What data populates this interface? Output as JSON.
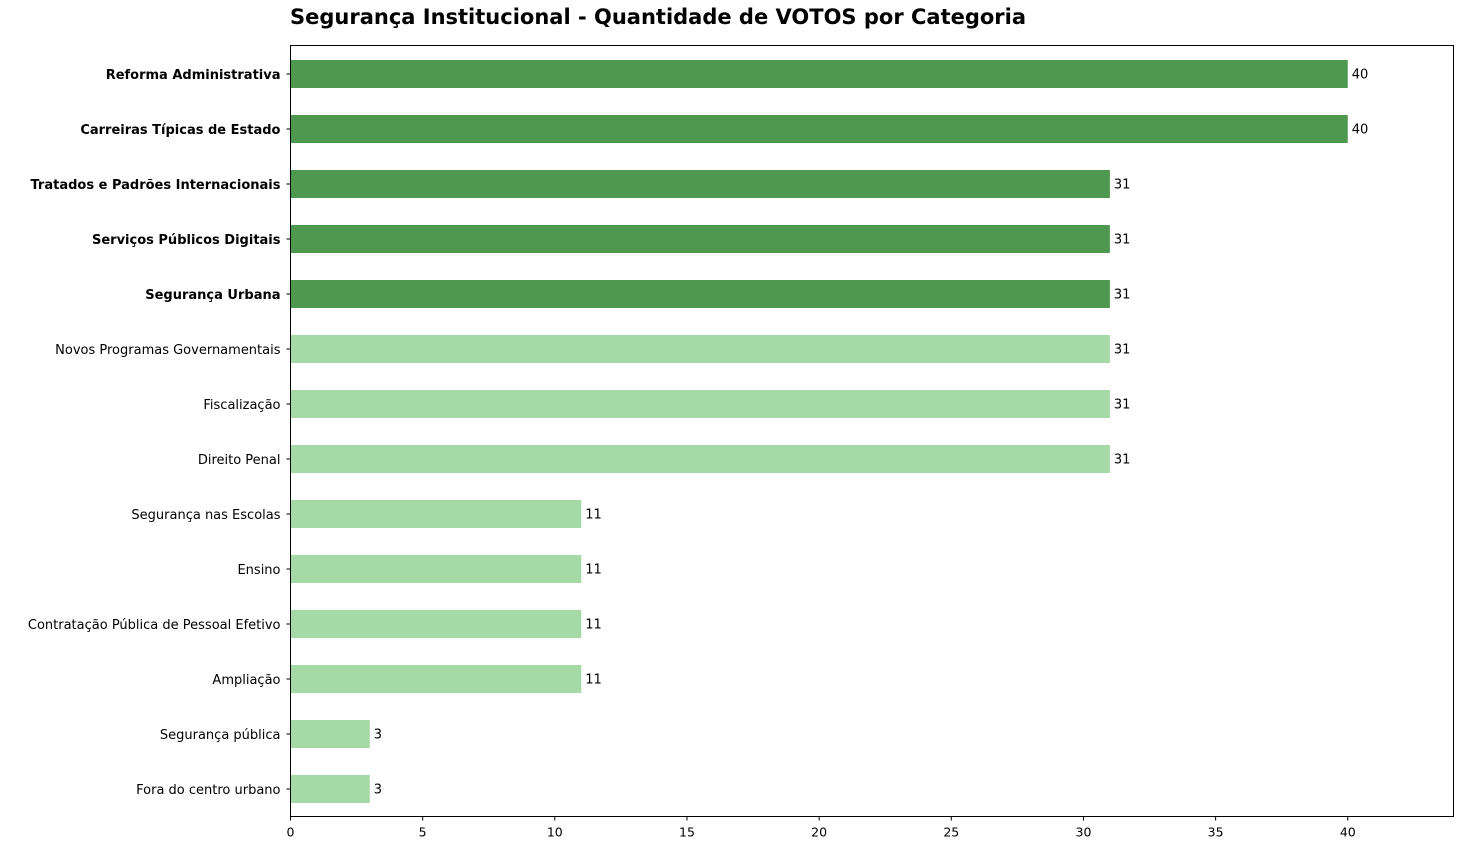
{
  "chart_data": {
    "type": "bar",
    "orientation": "horizontal",
    "title": "Segurança Institucional - Quantidade de VOTOS por Categoria",
    "xlabel": "",
    "ylabel": "",
    "xlim": [
      0,
      44
    ],
    "xticks": [
      0,
      5,
      10,
      15,
      20,
      25,
      30,
      35,
      40
    ],
    "grid": false,
    "highlight_color": "#4f9850",
    "base_color": "#a5d9a5",
    "categories": [
      "Reforma Administrativa",
      "Carreiras Típicas de Estado",
      "Tratados e Padrões Internacionais",
      "Serviços Públicos Digitais",
      "Segurança Urbana",
      "Novos Programas Governamentais",
      "Fiscalização",
      "Direito Penal",
      "Segurança nas Escolas",
      "Ensino",
      "Contratação Pública de Pessoal Efetivo",
      "Ampliação",
      "Segurança pública",
      "Fora do centro urbano"
    ],
    "values": [
      40,
      40,
      31,
      31,
      31,
      31,
      31,
      31,
      11,
      11,
      11,
      11,
      3,
      3
    ],
    "highlighted": [
      true,
      true,
      true,
      true,
      true,
      false,
      false,
      false,
      false,
      false,
      false,
      false,
      false,
      false
    ]
  }
}
